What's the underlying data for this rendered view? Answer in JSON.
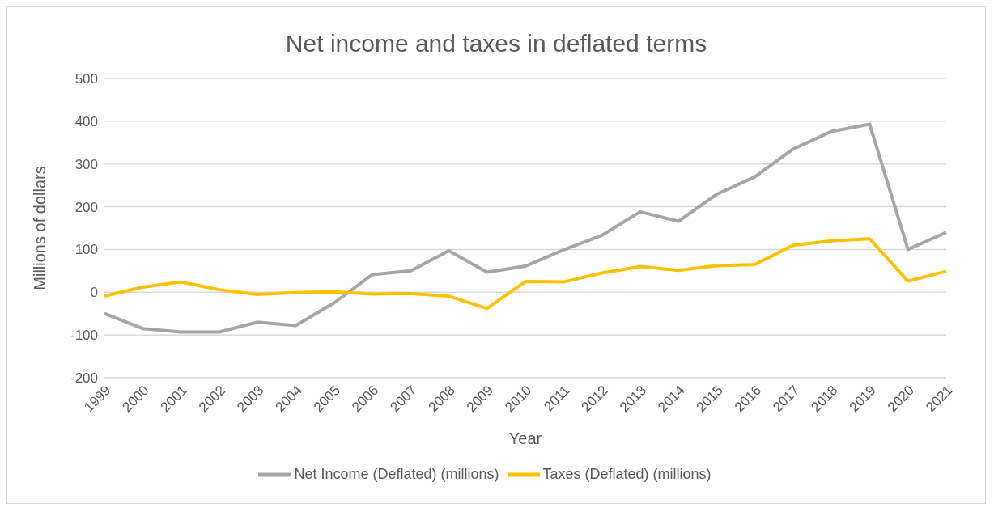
{
  "chart_data": {
    "type": "line",
    "title": "Net income and taxes in deflated terms",
    "xlabel": "Year",
    "ylabel": "Millions of dollars",
    "categories": [
      "1999",
      "2000",
      "2001",
      "2002",
      "2003",
      "2004",
      "2005",
      "2006",
      "2007",
      "2008",
      "2009",
      "2010",
      "2011",
      "2012",
      "2013",
      "2014",
      "2015",
      "2016",
      "2017",
      "2018",
      "2019",
      "2020",
      "2021"
    ],
    "series": [
      {
        "name": "Net Income (Deflated) (millions)",
        "color": "#a5a5a5",
        "values": [
          -50,
          -85,
          -93,
          -93,
          -70,
          -78,
          -25,
          41,
          50,
          97,
          47,
          61,
          99,
          133,
          188,
          166,
          229,
          270,
          335,
          376,
          393,
          100,
          140
        ]
      },
      {
        "name": "Taxes (Deflated) (millions)",
        "color": "#ffc000",
        "values": [
          -9,
          12,
          24,
          6,
          -5,
          -1,
          1,
          -4,
          -3,
          -9,
          -38,
          25,
          24,
          45,
          60,
          51,
          62,
          65,
          110,
          120,
          125,
          26,
          49
        ]
      }
    ],
    "ylim": [
      -200,
      500
    ],
    "yticks": [
      -200,
      -100,
      0,
      100,
      200,
      300,
      400,
      500
    ],
    "grid": "y",
    "legend": "bottom",
    "marker": "none",
    "line_style": "solid"
  }
}
